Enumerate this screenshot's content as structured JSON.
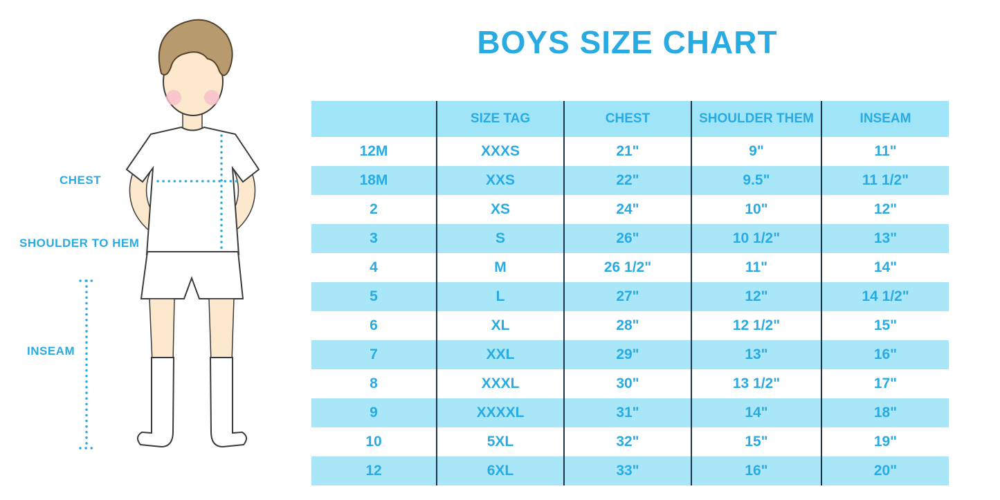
{
  "title": "BOYS SIZE CHART",
  "colors": {
    "accent": "#29abe2",
    "header_bg": "#a0e4f7",
    "stripe_bg": "#a9e7f8",
    "row_white": "#ffffff",
    "line": "#1c3247"
  },
  "figure": {
    "description": "boy-in-white-tshirt-shorts-and-socks",
    "labels": {
      "chest": "CHEST",
      "shoulder_to_hem": "SHOULDER TO HEM",
      "inseam": "INSEAM"
    }
  },
  "chart_data": {
    "type": "table",
    "title": "BOYS SIZE CHART",
    "columns": [
      "",
      "SIZE TAG",
      "CHEST",
      "SHOULDER THEM",
      "INSEAM"
    ],
    "rows": [
      [
        "12M",
        "XXXS",
        "21\"",
        "9\"",
        "11\""
      ],
      [
        "18M",
        "XXS",
        "22\"",
        "9.5\"",
        "11 1/2\""
      ],
      [
        "2",
        "XS",
        "24\"",
        "10\"",
        "12\""
      ],
      [
        "3",
        "S",
        "26\"",
        "10 1/2\"",
        "13\""
      ],
      [
        "4",
        "M",
        "26 1/2\"",
        "11\"",
        "14\""
      ],
      [
        "5",
        "L",
        "27\"",
        "12\"",
        "14 1/2\""
      ],
      [
        "6",
        "XL",
        "28\"",
        "12 1/2\"",
        "15\""
      ],
      [
        "7",
        "XXL",
        "29\"",
        "13\"",
        "16\""
      ],
      [
        "8",
        "XXXL",
        "30\"",
        "13 1/2\"",
        "17\""
      ],
      [
        "9",
        "XXXXL",
        "31\"",
        "14\"",
        "18\""
      ],
      [
        "10",
        "5XL",
        "32\"",
        "15\"",
        "19\""
      ],
      [
        "12",
        "6XL",
        "33\"",
        "16\"",
        "20\""
      ]
    ]
  }
}
